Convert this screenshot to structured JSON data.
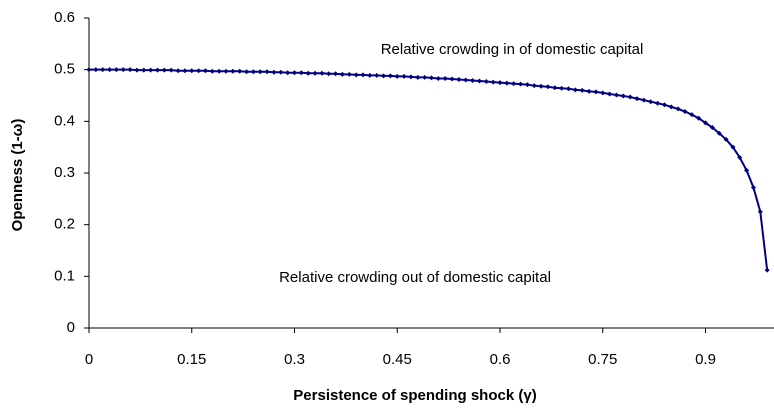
{
  "chart_data": {
    "type": "line",
    "x_label": "Persistence of spending shock (γ)",
    "y_label": "Openness (1-ω)",
    "annotations": [
      "Relative crowding in of domestic capital",
      "Relative crowding out of domestic capital"
    ],
    "x": [
      0,
      0.01,
      0.02,
      0.03,
      0.04,
      0.05,
      0.06,
      0.07,
      0.08,
      0.09,
      0.1,
      0.11,
      0.12,
      0.13,
      0.14,
      0.15,
      0.16,
      0.17,
      0.18,
      0.19,
      0.2,
      0.21,
      0.22,
      0.23,
      0.24,
      0.25,
      0.26,
      0.27,
      0.28,
      0.29,
      0.3,
      0.31,
      0.32,
      0.33,
      0.34,
      0.35,
      0.36,
      0.37,
      0.38,
      0.39,
      0.4,
      0.41,
      0.42,
      0.43,
      0.44,
      0.45,
      0.46,
      0.47,
      0.48,
      0.49,
      0.5,
      0.51,
      0.52,
      0.53,
      0.54,
      0.55,
      0.56,
      0.57,
      0.58,
      0.59,
      0.6,
      0.61,
      0.62,
      0.63,
      0.64,
      0.65,
      0.66,
      0.67,
      0.68,
      0.69,
      0.7,
      0.71,
      0.72,
      0.73,
      0.74,
      0.75,
      0.76,
      0.77,
      0.78,
      0.79,
      0.8,
      0.81,
      0.82,
      0.83,
      0.84,
      0.85,
      0.86,
      0.87,
      0.88,
      0.89,
      0.9,
      0.91,
      0.92,
      0.93,
      0.94,
      0.95,
      0.96,
      0.97,
      0.98,
      0.99
    ],
    "series": [
      {
        "color": "#000080",
        "values": [
          0.5,
          0.5,
          0.5,
          0.5,
          0.5,
          0.5,
          0.5,
          0.499,
          0.499,
          0.499,
          0.499,
          0.499,
          0.499,
          0.498,
          0.498,
          0.498,
          0.498,
          0.498,
          0.497,
          0.497,
          0.497,
          0.497,
          0.497,
          0.496,
          0.496,
          0.496,
          0.496,
          0.495,
          0.495,
          0.494,
          0.494,
          0.494,
          0.493,
          0.493,
          0.493,
          0.492,
          0.492,
          0.491,
          0.491,
          0.49,
          0.49,
          0.489,
          0.489,
          0.488,
          0.488,
          0.487,
          0.487,
          0.486,
          0.485,
          0.485,
          0.484,
          0.483,
          0.483,
          0.482,
          0.481,
          0.48,
          0.479,
          0.478,
          0.477,
          0.476,
          0.475,
          0.474,
          0.473,
          0.472,
          0.471,
          0.469,
          0.468,
          0.467,
          0.465,
          0.464,
          0.463,
          0.461,
          0.46,
          0.458,
          0.457,
          0.455,
          0.453,
          0.451,
          0.449,
          0.447,
          0.444,
          0.441,
          0.438,
          0.435,
          0.432,
          0.428,
          0.424,
          0.419,
          0.413,
          0.406,
          0.397,
          0.388,
          0.377,
          0.365,
          0.35,
          0.33,
          0.305,
          0.272,
          0.225,
          0.112
        ]
      }
    ],
    "xlim": [
      0,
      1
    ],
    "ylim": [
      0,
      0.6
    ],
    "xticks": [
      0,
      0.15,
      0.3,
      0.45,
      0.6,
      0.75,
      0.9
    ],
    "yticks": [
      0,
      0.1,
      0.2,
      0.3,
      0.4,
      0.5,
      0.6
    ],
    "grid": false
  }
}
